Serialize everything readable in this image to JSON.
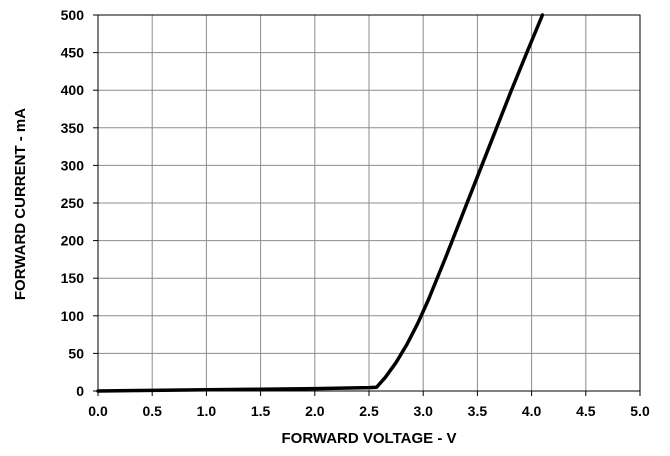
{
  "chart_data": {
    "type": "line",
    "title": "",
    "xlabel": "FORWARD VOLTAGE - V",
    "ylabel": "FORWARD CURRENT - mA",
    "xlim": [
      0.0,
      5.0
    ],
    "ylim": [
      0,
      500
    ],
    "x_ticks": [
      "0.0",
      "0.5",
      "1.0",
      "1.5",
      "2.0",
      "2.5",
      "3.0",
      "3.5",
      "4.0",
      "4.5",
      "5.0"
    ],
    "y_ticks": [
      "0",
      "50",
      "100",
      "150",
      "200",
      "250",
      "300",
      "350",
      "400",
      "450",
      "500"
    ],
    "grid": true,
    "legend": "none",
    "series": [
      {
        "x": [
          0.0,
          0.5,
          1.0,
          1.5,
          2.0,
          2.5,
          2.57,
          2.65,
          2.75,
          2.85,
          2.95,
          3.05,
          3.2,
          3.35,
          3.5,
          3.65,
          3.8,
          3.95,
          4.1
        ],
        "y": [
          0,
          0.8,
          1.6,
          2.4,
          3.2,
          4.5,
          5,
          18,
          38,
          62,
          90,
          122,
          175,
          230,
          285,
          340,
          395,
          448,
          502
        ]
      }
    ],
    "colors": {
      "line": "#000000",
      "grid": "#8c8c8c",
      "axis": "#000000"
    }
  }
}
